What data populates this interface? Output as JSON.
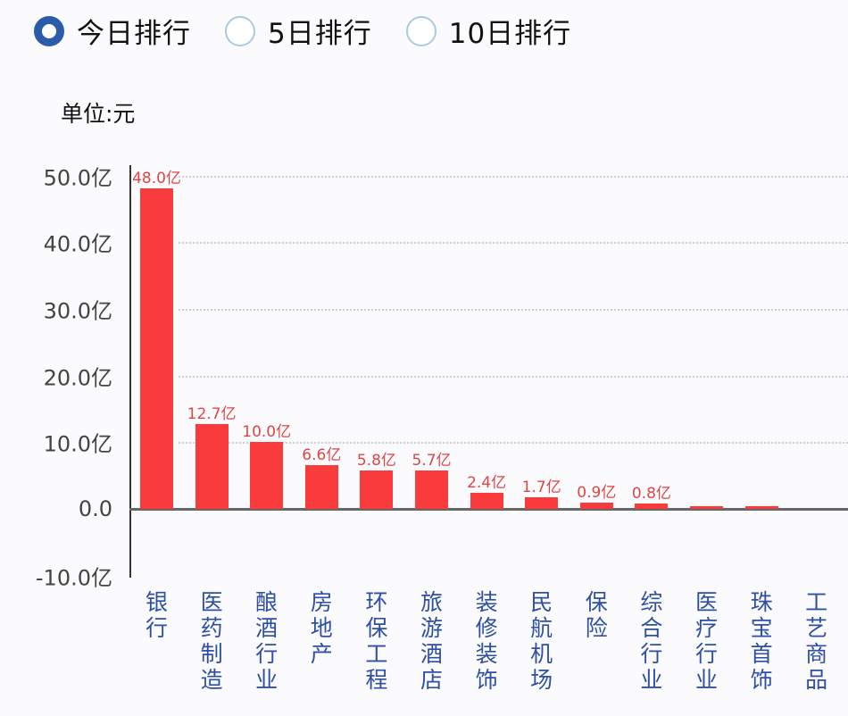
{
  "radios": [
    {
      "label": "今日排行",
      "checked": true
    },
    {
      "label": "5日排行",
      "checked": false
    },
    {
      "label": "10日排行",
      "checked": false
    }
  ],
  "unit_label": "单位:元",
  "colors": {
    "bar": "#f93b3b",
    "value_label": "#e04545",
    "category_label": "#2d4fa6",
    "radio_selected": "#2b5caa"
  },
  "chart_data": {
    "type": "bar",
    "title": "",
    "ylabel": "单位:元",
    "xlabel": "",
    "categories": [
      "银行",
      "医药制造",
      "酿酒行业",
      "房地产",
      "环保工程",
      "旅游酒店",
      "装修装饰",
      "民航机场",
      "保险",
      "综合行业",
      "医疗行业",
      "珠宝首饰",
      "工艺商品"
    ],
    "values": [
      48.0,
      12.7,
      10.0,
      6.6,
      5.8,
      5.7,
      2.4,
      1.7,
      0.9,
      0.8,
      0.4,
      0.3,
      0.0
    ],
    "value_labels": [
      "48.0亿",
      "12.7亿",
      "10.0亿",
      "6.6亿",
      "5.8亿",
      "5.7亿",
      "2.4亿",
      "1.7亿",
      "0.9亿",
      "0.8亿",
      "",
      "",
      ""
    ],
    "unit": "亿",
    "ylim": [
      -10,
      50
    ],
    "yticks": [
      {
        "value": 50,
        "label": "50.0亿"
      },
      {
        "value": 40,
        "label": "40.0亿"
      },
      {
        "value": 30,
        "label": "30.0亿"
      },
      {
        "value": 20,
        "label": "20.0亿"
      },
      {
        "value": 10,
        "label": "10.0亿"
      },
      {
        "value": 0,
        "label": "0.0"
      },
      {
        "value": -10,
        "label": "-10.0亿"
      }
    ],
    "grid": true,
    "legend": null
  }
}
